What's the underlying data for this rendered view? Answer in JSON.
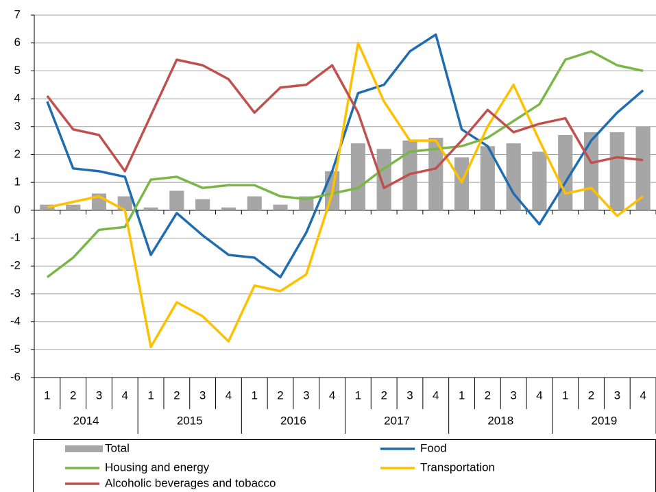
{
  "chart_data": {
    "type": "bar-line",
    "categories": [
      "1",
      "2",
      "3",
      "4",
      "1",
      "2",
      "3",
      "4",
      "1",
      "2",
      "3",
      "4",
      "1",
      "2",
      "3",
      "4",
      "1",
      "2",
      "3",
      "4",
      "1",
      "2",
      "3",
      "4"
    ],
    "year_groups": [
      "2014",
      "2015",
      "2016",
      "2017",
      "2018",
      "2019"
    ],
    "ylim": [
      -6,
      7
    ],
    "yticks": [
      -6,
      -5,
      -4,
      -3,
      -2,
      -1,
      0,
      1,
      2,
      3,
      4,
      5,
      6,
      7
    ],
    "grid": true,
    "series": [
      {
        "name": "Total",
        "kind": "bar",
        "color": "#a6a6a6",
        "values": [
          0.2,
          0.2,
          0.6,
          0.5,
          0.1,
          0.7,
          0.4,
          0.1,
          0.5,
          0.2,
          0.5,
          1.4,
          2.4,
          2.2,
          2.5,
          2.6,
          1.9,
          2.3,
          2.4,
          2.1,
          2.7,
          2.8,
          2.8,
          3.0
        ]
      },
      {
        "name": "Food",
        "kind": "line",
        "color": "#1f6db0",
        "values": [
          3.9,
          1.5,
          1.4,
          1.2,
          -1.6,
          -0.1,
          -0.9,
          -1.6,
          -1.7,
          -2.4,
          -0.8,
          1.4,
          4.2,
          4.5,
          5.7,
          6.3,
          2.9,
          2.3,
          0.6,
          -0.5,
          1.0,
          2.5,
          3.5,
          4.3
        ]
      },
      {
        "name": "Housing and energy",
        "kind": "line",
        "color": "#7ab648",
        "values": [
          -2.4,
          -1.7,
          -0.7,
          -0.6,
          1.1,
          1.2,
          0.8,
          0.9,
          0.9,
          0.5,
          0.4,
          0.6,
          0.8,
          1.5,
          2.1,
          2.2,
          2.3,
          2.6,
          3.2,
          3.8,
          5.4,
          5.7,
          5.2,
          5.0
        ]
      },
      {
        "name": "Transportation",
        "kind": "line",
        "color": "#ffc000",
        "values": [
          0.1,
          0.3,
          0.5,
          0.0,
          -4.9,
          -3.3,
          -3.8,
          -4.7,
          -2.7,
          -2.9,
          -2.3,
          0.6,
          6.0,
          3.9,
          2.5,
          2.5,
          1.0,
          3.0,
          4.5,
          2.5,
          0.6,
          0.8,
          -0.2,
          0.5
        ]
      },
      {
        "name": "Alcoholic beverages and tobacco",
        "kind": "line",
        "color": "#c0504d",
        "values": [
          4.1,
          2.9,
          2.7,
          1.4,
          3.4,
          5.4,
          5.2,
          4.7,
          3.5,
          4.4,
          4.5,
          5.2,
          3.5,
          0.8,
          1.3,
          1.5,
          2.5,
          3.6,
          2.8,
          3.1,
          3.3,
          1.7,
          1.9,
          1.8
        ]
      }
    ]
  }
}
